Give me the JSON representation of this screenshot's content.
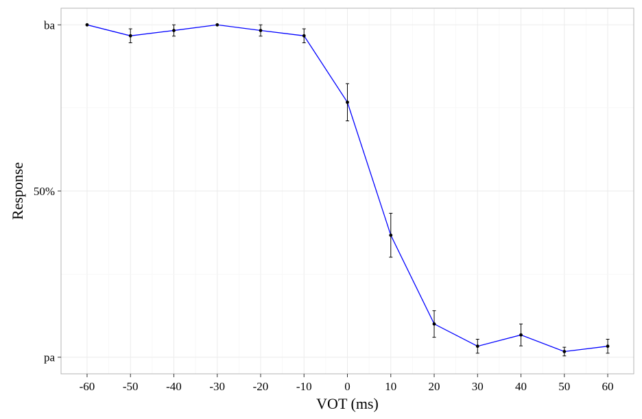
{
  "chart_data": {
    "type": "line",
    "title": "",
    "xlabel": "VOT (ms)",
    "ylabel": "Response",
    "x": [
      -60,
      -50,
      -40,
      -30,
      -20,
      -10,
      0,
      10,
      20,
      30,
      40,
      50,
      60
    ],
    "x_tick_labels": [
      "-60",
      "-50",
      "-40",
      "-30",
      "-20",
      "-10",
      "0",
      "10",
      "20",
      "30",
      "40",
      "50",
      "60"
    ],
    "y_tick_labels": [
      "pa",
      "50%",
      "ba"
    ],
    "y_tick_values": [
      0,
      50,
      100
    ],
    "xlim": [
      -66,
      66
    ],
    "ylim": [
      -5,
      105
    ],
    "series": [
      {
        "values": [
          100,
          96.7,
          98.3,
          100,
          98.3,
          96.7,
          76.7,
          36.7,
          10,
          3.3,
          6.7,
          1.7,
          3.3
        ],
        "error_low": [
          100,
          94.6,
          96.6,
          100,
          96.6,
          94.6,
          71.1,
          30.1,
          6.0,
          1.2,
          3.4,
          0.4,
          1.2
        ],
        "error_high": [
          100,
          98.8,
          100,
          100,
          100,
          98.8,
          82.3,
          43.3,
          14.0,
          5.4,
          10.0,
          3.0,
          5.4
        ]
      }
    ],
    "colors": {
      "line": "#0000ff",
      "points": "#000000",
      "errorbars": "#000000",
      "panel_border": "#b3b3b3",
      "grid": "#ebebeb"
    },
    "grid": true,
    "legend": "none"
  }
}
